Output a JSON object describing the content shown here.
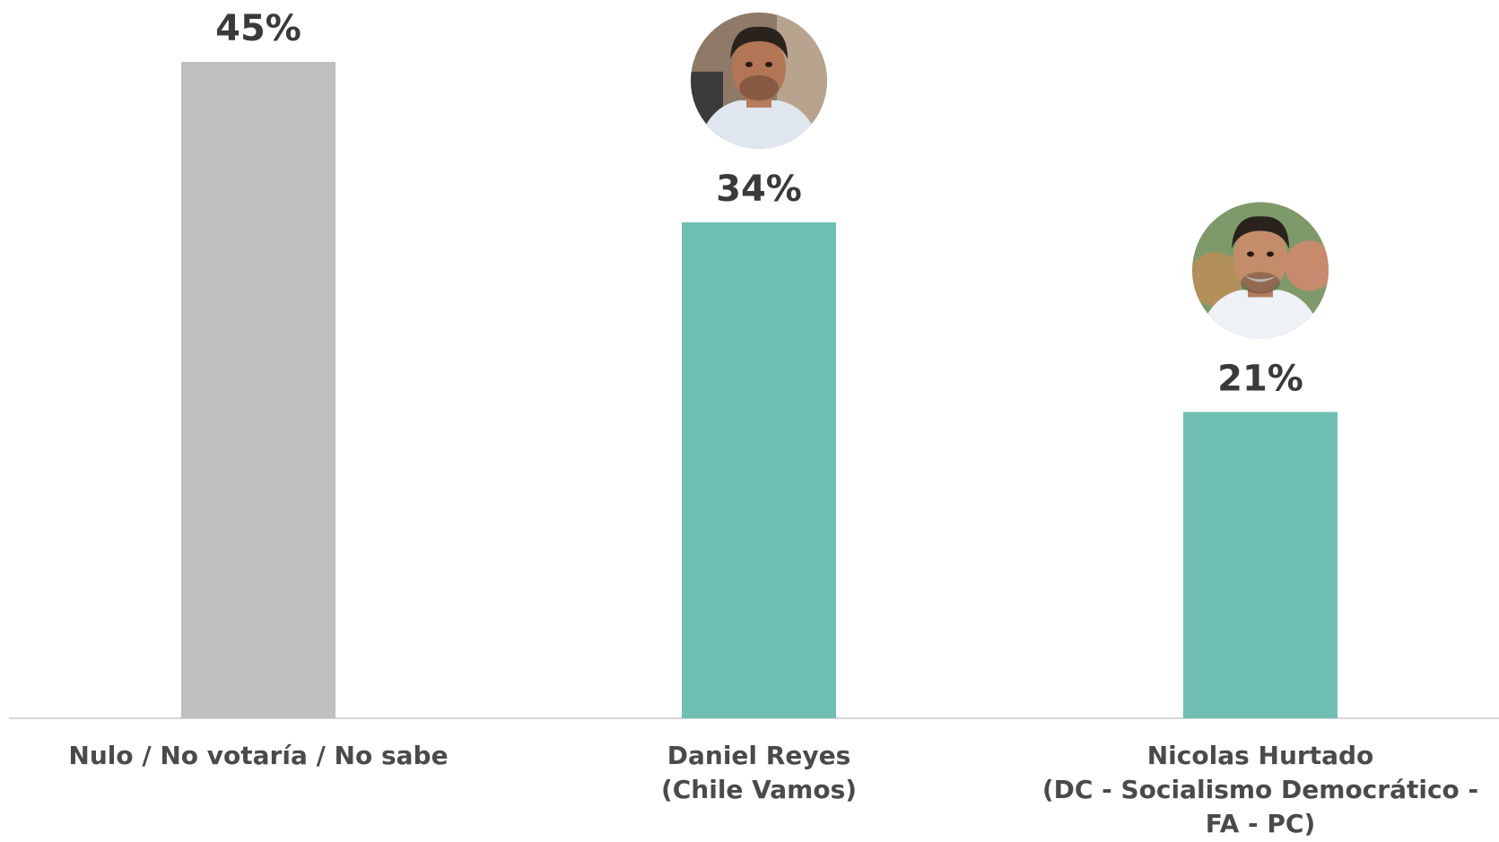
{
  "chart_data": {
    "type": "bar",
    "title": "",
    "xlabel": "",
    "ylabel": "",
    "ylim": [
      0,
      45
    ],
    "grid": false,
    "legend": "none",
    "categories": [
      [
        "Nulo / No votaría / No sabe"
      ],
      [
        "Daniel Reyes",
        "(Chile Vamos)"
      ],
      [
        "Nicolas Hurtado",
        "(DC - Socialismo Democrático -",
        "FA - PC)"
      ]
    ],
    "values": [
      45,
      34,
      21
    ],
    "value_labels": [
      "45%",
      "34%",
      "21%"
    ],
    "bar_colors": [
      "#bfbfbf",
      "#6fc0b2",
      "#6fc0b2"
    ],
    "photos": [
      null,
      "daniel-reyes-photo-icon",
      "nicolas-hurtado-photo-icon"
    ]
  }
}
